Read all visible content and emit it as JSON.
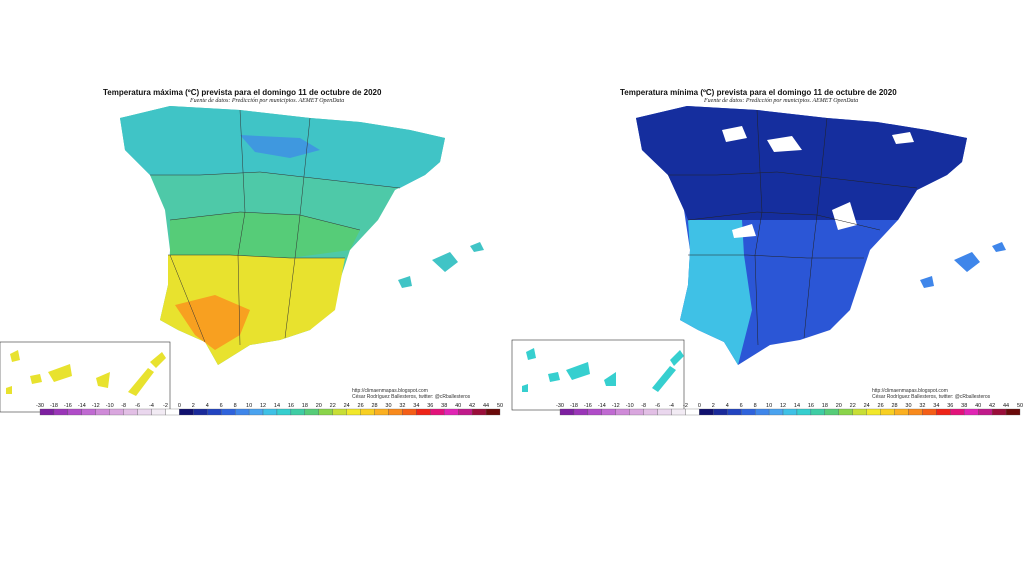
{
  "maps": [
    {
      "id": "max",
      "title": "Temperatura máxima (ºC) prevista para el domingo 11 de octubre de 2020",
      "subtitle": "Fuente de datos: Predicción por municipios. AEMET OpenData",
      "credit_url": "http://climaenmapas.blogspot.com",
      "credit_author": "César Rodríguez Ballesteros, twitter: @cRballesteros"
    },
    {
      "id": "min",
      "title": "Temperatura mínima (ºC) prevista para el domingo 11 de octubre de 2020",
      "subtitle": "Fuente de datos: Predicción por municipios. AEMET OpenData",
      "credit_url": "http://climaenmapas.blogspot.com",
      "credit_author": "César Rodríguez Ballesteros, twitter: @cRballesteros"
    }
  ],
  "legend": {
    "ticks": [
      "-30",
      "-18",
      "-16",
      "-14",
      "-12",
      "-10",
      "-8",
      "-6",
      "-4",
      "-2",
      "0",
      "2",
      "4",
      "6",
      "8",
      "10",
      "12",
      "14",
      "16",
      "18",
      "20",
      "22",
      "24",
      "26",
      "28",
      "30",
      "32",
      "34",
      "36",
      "38",
      "40",
      "42",
      "44",
      "50"
    ],
    "colors": [
      "#7d1fa0",
      "#9a35b8",
      "#b04cc8",
      "#c06ad2",
      "#cf8ad8",
      "#d9a6de",
      "#e2bfe5",
      "#ead7ee",
      "#f2ebf4",
      "#ffffff",
      "#10106e",
      "#1a2a9a",
      "#2244c0",
      "#2f63dc",
      "#3f86ea",
      "#4aa3ef",
      "#3fc1e6",
      "#36cfcf",
      "#3fcda4",
      "#56cc78",
      "#8ad44a",
      "#c8de36",
      "#f2e82a",
      "#f8cf22",
      "#fbb021",
      "#f88a1d",
      "#f45e17",
      "#ee2418",
      "#e2127a",
      "#e025b4",
      "#c01a8a",
      "#9a0e3a",
      "#6a0a0a"
    ]
  }
}
